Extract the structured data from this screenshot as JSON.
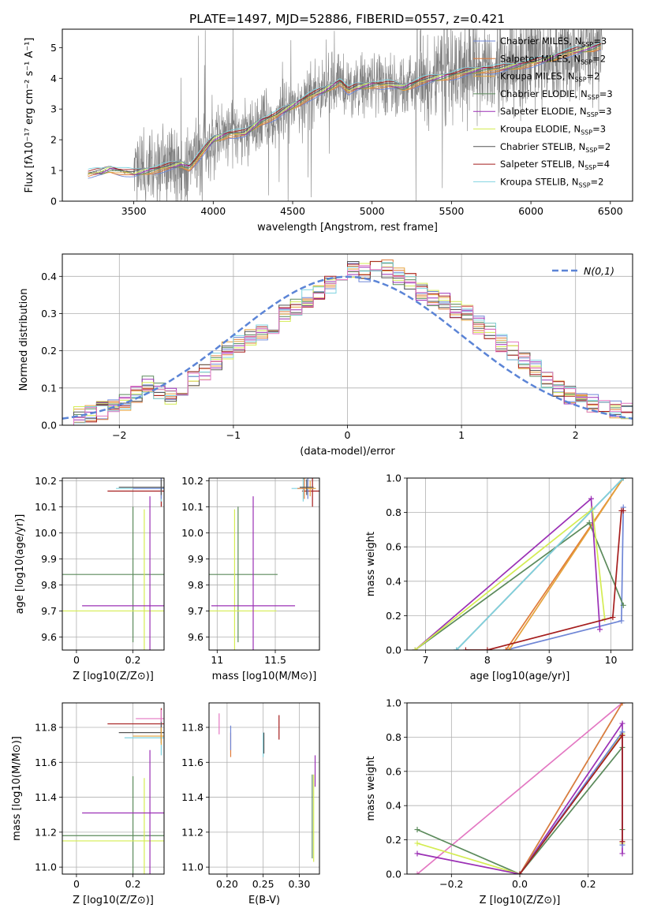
{
  "figure": {
    "title": "PLATE=1497, MJD=52886, FIBERID=0557, z=0.421"
  },
  "colors": {
    "data": "#808080",
    "axis": "#000000",
    "grid": "#b0b0b0",
    "gaussian": "#5b84d6"
  },
  "models": [
    {
      "name": "Chabrier MILES, N",
      "sub": "SSP",
      "suffix": "=3",
      "color": "#6f86d6"
    },
    {
      "name": "Salpeter MILES, N",
      "sub": "SSP",
      "suffix": "=2",
      "color": "#e07b39"
    },
    {
      "name": "Kroupa MILES, N",
      "sub": "SSP",
      "suffix": "=2",
      "color": "#e5a23b"
    },
    {
      "name": "Chabrier ELODIE, N",
      "sub": "SSP",
      "suffix": "=3",
      "color": "#5b8a5b"
    },
    {
      "name": "Salpeter ELODIE, N",
      "sub": "SSP",
      "suffix": "=3",
      "color": "#9b30b5"
    },
    {
      "name": "Kroupa ELODIE, N",
      "sub": "SSP",
      "suffix": "=3",
      "color": "#d4ec52"
    },
    {
      "name": "Chabrier STELIB, N",
      "sub": "SSP",
      "suffix": "=2",
      "color": "#555555"
    },
    {
      "name": "Salpeter STELIB, N",
      "sub": "SSP",
      "suffix": "=4",
      "color": "#a51d1d"
    },
    {
      "name": "Kroupa STELIB, N",
      "sub": "SSP",
      "suffix": "=2",
      "color": "#7fd3e0"
    }
  ],
  "chart_data": [
    {
      "id": "spectrum",
      "type": "line",
      "xlabel": "wavelength [Angstrom, rest frame]",
      "ylabel": "Flux [fλ10⁻¹⁷ erg cm⁻² s⁻¹ A⁻¹]",
      "xlim": [
        3050,
        6640
      ],
      "ylim": [
        0,
        5.6
      ],
      "xticks": [
        3500,
        4000,
        4500,
        5000,
        5500,
        6000,
        6500
      ],
      "yticks": [
        0,
        1,
        2,
        3,
        4,
        5
      ],
      "grid": false,
      "legend": "top-right",
      "model_continuum": [
        [
          3210,
          0
        ],
        [
          3212,
          0.9
        ],
        [
          3300,
          0.95
        ],
        [
          3350,
          1.05
        ],
        [
          3400,
          1.0
        ],
        [
          3450,
          0.95
        ],
        [
          3500,
          0.9
        ],
        [
          3550,
          0.95
        ],
        [
          3600,
          1.0
        ],
        [
          3700,
          1.1
        ],
        [
          3800,
          1.2
        ],
        [
          3850,
          1.1
        ],
        [
          3900,
          1.4
        ],
        [
          3950,
          1.7
        ],
        [
          4000,
          2.0
        ],
        [
          4100,
          2.2
        ],
        [
          4200,
          2.2
        ],
        [
          4300,
          2.6
        ],
        [
          4400,
          2.8
        ],
        [
          4500,
          3.1
        ],
        [
          4600,
          3.4
        ],
        [
          4700,
          3.6
        ],
        [
          4800,
          3.9
        ],
        [
          4850,
          3.6
        ],
        [
          4900,
          3.7
        ],
        [
          5000,
          3.8
        ],
        [
          5100,
          3.8
        ],
        [
          5200,
          3.7
        ],
        [
          5300,
          3.9
        ],
        [
          5400,
          4.0
        ],
        [
          5500,
          4.1
        ],
        [
          5600,
          4.2
        ],
        [
          5700,
          4.3
        ],
        [
          5800,
          4.3
        ],
        [
          5900,
          4.4
        ],
        [
          6000,
          4.5
        ],
        [
          6100,
          4.6
        ],
        [
          6200,
          4.8
        ],
        [
          6300,
          4.9
        ],
        [
          6400,
          5.0
        ],
        [
          6450,
          5.1
        ]
      ]
    },
    {
      "id": "residuals",
      "type": "histogram",
      "xlabel": "(data-model)/error",
      "ylabel": "Normed distribution",
      "xlim": [
        -2.5,
        2.5
      ],
      "ylim": [
        0,
        0.46
      ],
      "xticks": [
        -2,
        -1,
        0,
        1,
        2
      ],
      "yticks": [
        0.0,
        0.1,
        0.2,
        0.3,
        0.4
      ],
      "grid": true,
      "legend": "top-right",
      "reference_label": "N(0,1)",
      "bin_width": 0.1,
      "bin_start": -2.5,
      "approx_values": [
        0.02,
        0.025,
        0.03,
        0.04,
        0.05,
        0.06,
        0.08,
        0.11,
        0.09,
        0.08,
        0.1,
        0.12,
        0.14,
        0.17,
        0.2,
        0.22,
        0.24,
        0.25,
        0.27,
        0.3,
        0.32,
        0.34,
        0.36,
        0.38,
        0.4,
        0.42,
        0.41,
        0.43,
        0.42,
        0.4,
        0.39,
        0.36,
        0.34,
        0.33,
        0.31,
        0.3,
        0.27,
        0.25,
        0.22,
        0.2,
        0.17,
        0.15,
        0.12,
        0.1,
        0.08,
        0.07,
        0.06,
        0.05,
        0.04,
        0.035
      ]
    },
    {
      "id": "age-vs-Z",
      "type": "errorbar",
      "xlabel": "Z [log10(Z/Z⊙)]",
      "ylabel": "age [log10(age/yr)]",
      "xlim": [
        -0.05,
        0.31
      ],
      "ylim": [
        9.55,
        10.21
      ],
      "xticks": [
        0.0,
        0.2
      ],
      "yticks": [
        9.6,
        9.7,
        9.8,
        9.9,
        10.0,
        10.1,
        10.2
      ],
      "grid": true,
      "points": [
        {
          "model": 3,
          "x": 0.2,
          "xerr": 0.25,
          "y": 9.84,
          "yerr": 0.26
        },
        {
          "model": 5,
          "x": 0.24,
          "xerr": 0.3,
          "y": 9.7,
          "yerr": 0.39
        },
        {
          "model": 4,
          "x": 0.26,
          "xerr": 0.24,
          "y": 9.72,
          "yerr": 0.42
        },
        {
          "model": 7,
          "x": 0.3,
          "xerr": 0.19,
          "y": 10.16,
          "yerr": 0.06
        },
        {
          "model": 8,
          "x": 0.3,
          "xerr": 0.16,
          "y": 10.17,
          "yerr": 0.05
        },
        {
          "model": 0,
          "x": 0.3,
          "xerr": 0.1,
          "y": 10.17,
          "yerr": 0.04
        },
        {
          "model": 6,
          "x": 0.3,
          "xerr": 0.15,
          "y": 10.175,
          "yerr": 0.03
        }
      ]
    },
    {
      "id": "age-vs-mass",
      "type": "errorbar",
      "xlabel": "mass [log10(M/M⊙)]",
      "ylabel": "",
      "xlim": [
        10.93,
        11.88
      ],
      "ylim": [
        9.55,
        10.21
      ],
      "xticks": [
        11.0,
        11.5
      ],
      "yticks": [
        9.6,
        9.7,
        9.8,
        9.9,
        10.0,
        10.1,
        10.2
      ],
      "grid": true,
      "points": [
        {
          "model": 3,
          "x": 11.18,
          "xerr": 0.34,
          "y": 9.84,
          "yerr": 0.26
        },
        {
          "model": 5,
          "x": 11.15,
          "xerr": 0.36,
          "y": 9.7,
          "yerr": 0.39
        },
        {
          "model": 4,
          "x": 11.31,
          "xerr": 0.36,
          "y": 9.72,
          "yerr": 0.42
        },
        {
          "model": 7,
          "x": 11.82,
          "xerr": 0.09,
          "y": 10.16,
          "yerr": 0.06
        },
        {
          "model": 8,
          "x": 11.74,
          "xerr": 0.1,
          "y": 10.17,
          "yerr": 0.05
        },
        {
          "model": 0,
          "x": 11.78,
          "xerr": 0.05,
          "y": 10.17,
          "yerr": 0.04
        },
        {
          "model": 1,
          "x": 11.75,
          "xerr": 0.06,
          "y": 10.17,
          "yerr": 0.04
        },
        {
          "model": 2,
          "x": 11.8,
          "xerr": 0.05,
          "y": 10.17,
          "yerr": 0.03
        },
        {
          "model": 6,
          "x": 11.77,
          "xerr": 0.06,
          "y": 10.175,
          "yerr": 0.03
        }
      ]
    },
    {
      "id": "mass-weight-vs-age",
      "type": "line",
      "xlabel": "age [log10(age/yr)]",
      "ylabel": "mass weight",
      "xlim": [
        6.7,
        10.35
      ],
      "ylim": [
        0.0,
        1.0
      ],
      "xticks": [
        7,
        8,
        9,
        10
      ],
      "yticks": [
        0.0,
        0.2,
        0.4,
        0.6,
        0.8,
        1.0
      ],
      "grid": true,
      "series": [
        {
          "model": 0,
          "x": [
            8.3,
            10.17,
            10.2
          ],
          "y": [
            0.0,
            0.17,
            0.83
          ]
        },
        {
          "model": 1,
          "x": [
            8.3,
            10.2
          ],
          "y": [
            0.0,
            1.0
          ]
        },
        {
          "model": 2,
          "x": [
            8.35,
            10.2
          ],
          "y": [
            0.0,
            1.0
          ]
        },
        {
          "model": 3,
          "x": [
            6.83,
            9.65,
            10.2
          ],
          "y": [
            0.0,
            0.74,
            0.26
          ]
        },
        {
          "model": 4,
          "x": [
            6.83,
            9.68,
            9.82
          ],
          "y": [
            0.0,
            0.88,
            0.12
          ]
        },
        {
          "model": 5,
          "x": [
            6.83,
            9.7,
            9.9
          ],
          "y": [
            0.0,
            0.82,
            0.18
          ]
        },
        {
          "model": 6,
          "x": [
            7.5,
            10.2
          ],
          "y": [
            0.0,
            1.0
          ]
        },
        {
          "model": 7,
          "x": [
            7.65,
            8.0,
            10.03,
            10.17,
            10.2
          ],
          "y": [
            0.0,
            0.0,
            0.19,
            0.81,
            0.81
          ]
        },
        {
          "model": 8,
          "x": [
            7.5,
            10.2
          ],
          "y": [
            0.0,
            1.0
          ]
        }
      ]
    },
    {
      "id": "mass-vs-Z",
      "type": "errorbar",
      "xlabel": "Z [log10(Z/Z⊙)]",
      "ylabel": "mass [log10(M/M⊙)]",
      "xlim": [
        -0.05,
        0.31
      ],
      "ylim": [
        10.96,
        11.94
      ],
      "xticks": [
        0.0,
        0.2
      ],
      "yticks": [
        11.0,
        11.2,
        11.4,
        11.6,
        11.8
      ],
      "grid": true,
      "points": [
        {
          "model": 3,
          "x": 0.2,
          "xerr": 0.25,
          "y": 11.18,
          "yerr": 0.34
        },
        {
          "model": 5,
          "x": 0.24,
          "xerr": 0.3,
          "y": 11.15,
          "yerr": 0.36
        },
        {
          "model": 4,
          "x": 0.26,
          "xerr": 0.24,
          "y": 11.31,
          "yerr": 0.36
        },
        {
          "model": 7,
          "x": 0.3,
          "xerr": 0.19,
          "y": 11.82,
          "yerr": 0.09
        },
        {
          "model": 8,
          "x": 0.3,
          "xerr": 0.13,
          "y": 11.74,
          "yerr": 0.1
        },
        {
          "model": 9,
          "x": 0.3,
          "xerr": 0.09,
          "y": 11.85,
          "yerr": 0.05
        },
        {
          "model": 6,
          "x": 0.3,
          "xerr": 0.15,
          "y": 11.77,
          "yerr": 0.06
        },
        {
          "model": 2,
          "x": 0.3,
          "xerr": 0.1,
          "y": 11.75,
          "yerr": 0.05
        }
      ]
    },
    {
      "id": "mass-vs-EBV",
      "type": "errorbar",
      "xlabel": "E(B-V)",
      "ylabel": "",
      "xlim": [
        0.175,
        0.328
      ],
      "ylim": [
        10.96,
        11.94
      ],
      "xticks": [
        0.2,
        0.25,
        0.3
      ],
      "xticklabels": [
        "0.20",
        "0.25",
        "0.30"
      ],
      "yticks": [
        11.0,
        11.2,
        11.4,
        11.6,
        11.8
      ],
      "grid": true,
      "points": [
        {
          "model": 9,
          "x": 0.189,
          "y": 11.82,
          "yerr": 0.06
        },
        {
          "model": 1,
          "x": 0.205,
          "y": 11.7,
          "yerr": 0.07
        },
        {
          "model": 0,
          "x": 0.205,
          "y": 11.74,
          "yerr": 0.07
        },
        {
          "model": 8,
          "x": 0.25,
          "y": 11.7,
          "yerr": 0.07
        },
        {
          "model": 6,
          "x": 0.251,
          "y": 11.71,
          "yerr": 0.06
        },
        {
          "model": 7,
          "x": 0.272,
          "y": 11.8,
          "yerr": 0.07
        },
        {
          "model": 3,
          "x": 0.318,
          "y": 11.29,
          "yerr": 0.24
        },
        {
          "model": 5,
          "x": 0.32,
          "y": 11.28,
          "yerr": 0.25
        },
        {
          "model": 4,
          "x": 0.322,
          "y": 11.55,
          "yerr": 0.09
        }
      ]
    },
    {
      "id": "mass-weight-vs-Z",
      "type": "line",
      "xlabel": "Z [log10(Z/Z⊙)]",
      "ylabel": "mass weight",
      "xlim": [
        -0.33,
        0.33
      ],
      "ylim": [
        0.0,
        1.0
      ],
      "xticks": [
        -0.2,
        0.0,
        0.2
      ],
      "xticklabels": [
        "−0.2",
        "0.0",
        "0.2"
      ],
      "yticks": [
        0.0,
        0.2,
        0.4,
        0.6,
        0.8,
        1.0
      ],
      "grid": true,
      "series": [
        {
          "model": 9,
          "x": [
            -0.3,
            0.3
          ],
          "y": [
            0.0,
            1.0
          ]
        },
        {
          "model": 3,
          "x": [
            -0.3,
            0.0,
            0.3,
            0.3
          ],
          "y": [
            0.26,
            0.0,
            0.74,
            0.26
          ]
        },
        {
          "model": 5,
          "x": [
            -0.3,
            0.0,
            0.3,
            0.3
          ],
          "y": [
            0.18,
            0.0,
            0.82,
            0.18
          ]
        },
        {
          "model": 4,
          "x": [
            -0.3,
            0.0,
            0.3,
            0.3
          ],
          "y": [
            0.12,
            0.0,
            0.88,
            0.12
          ]
        },
        {
          "model": 8,
          "x": [
            0.0,
            0.3
          ],
          "y": [
            0.0,
            1.0
          ]
        },
        {
          "model": 1,
          "x": [
            0.0,
            0.3
          ],
          "y": [
            0.0,
            1.0
          ]
        },
        {
          "model": 0,
          "x": [
            0.0,
            0.3,
            0.3
          ],
          "y": [
            0.0,
            0.83,
            0.17
          ]
        },
        {
          "model": 7,
          "x": [
            0.0,
            0.3,
            0.3
          ],
          "y": [
            0.0,
            0.81,
            0.19
          ]
        }
      ]
    }
  ]
}
